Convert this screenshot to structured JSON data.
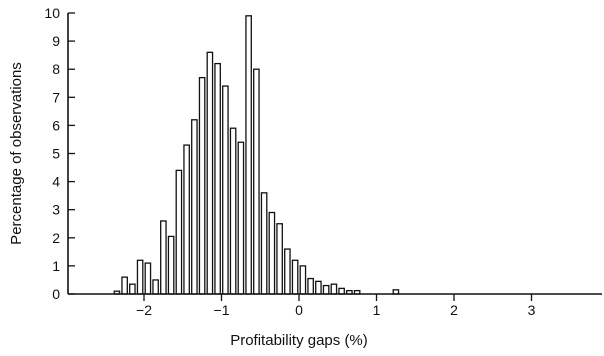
{
  "chart_data": {
    "type": "bar",
    "xlabel": "Profitability gaps (%)",
    "ylabel": "Percentage of observations",
    "xlim": [
      -3.2,
      3.8
    ],
    "ylim": [
      0,
      10
    ],
    "bin_width": 0.1,
    "xticks": [
      {
        "value": -2,
        "label": "−2"
      },
      {
        "value": -1,
        "label": "−1"
      },
      {
        "value": 0,
        "label": "0"
      },
      {
        "value": 1,
        "label": "1"
      },
      {
        "value": 2,
        "label": "2"
      },
      {
        "value": 3,
        "label": "3"
      }
    ],
    "yticks": [
      {
        "value": 0,
        "label": "0"
      },
      {
        "value": 1,
        "label": "1"
      },
      {
        "value": 2,
        "label": "2"
      },
      {
        "value": 3,
        "label": "3"
      },
      {
        "value": 4,
        "label": "4"
      },
      {
        "value": 5,
        "label": "5"
      },
      {
        "value": 6,
        "label": "6"
      },
      {
        "value": 7,
        "label": "7"
      },
      {
        "value": 8,
        "label": "8"
      },
      {
        "value": 9,
        "label": "9"
      },
      {
        "value": 10,
        "label": "10"
      }
    ],
    "bars": [
      {
        "x": -2.4,
        "y": 0.1
      },
      {
        "x": -2.3,
        "y": 0.6
      },
      {
        "x": -2.2,
        "y": 0.35
      },
      {
        "x": -2.1,
        "y": 1.2
      },
      {
        "x": -2.0,
        "y": 1.1
      },
      {
        "x": -1.9,
        "y": 0.5
      },
      {
        "x": -1.8,
        "y": 2.6
      },
      {
        "x": -1.7,
        "y": 2.05
      },
      {
        "x": -1.6,
        "y": 4.4
      },
      {
        "x": -1.5,
        "y": 5.3
      },
      {
        "x": -1.4,
        "y": 6.2
      },
      {
        "x": -1.3,
        "y": 7.7
      },
      {
        "x": -1.2,
        "y": 8.6
      },
      {
        "x": -1.1,
        "y": 8.2
      },
      {
        "x": -1.0,
        "y": 7.4
      },
      {
        "x": -0.9,
        "y": 5.9
      },
      {
        "x": -0.8,
        "y": 5.4
      },
      {
        "x": -0.7,
        "y": 9.9
      },
      {
        "x": -0.6,
        "y": 8.0
      },
      {
        "x": -0.5,
        "y": 3.6
      },
      {
        "x": -0.4,
        "y": 2.9
      },
      {
        "x": -0.3,
        "y": 2.5
      },
      {
        "x": -0.2,
        "y": 1.6
      },
      {
        "x": -0.1,
        "y": 1.2
      },
      {
        "x": 0.0,
        "y": 1.0
      },
      {
        "x": 0.1,
        "y": 0.55
      },
      {
        "x": 0.2,
        "y": 0.45
      },
      {
        "x": 0.3,
        "y": 0.3
      },
      {
        "x": 0.4,
        "y": 0.35
      },
      {
        "x": 0.5,
        "y": 0.2
      },
      {
        "x": 0.6,
        "y": 0.12
      },
      {
        "x": 0.7,
        "y": 0.12
      },
      {
        "x": 1.2,
        "y": 0.15
      }
    ]
  }
}
